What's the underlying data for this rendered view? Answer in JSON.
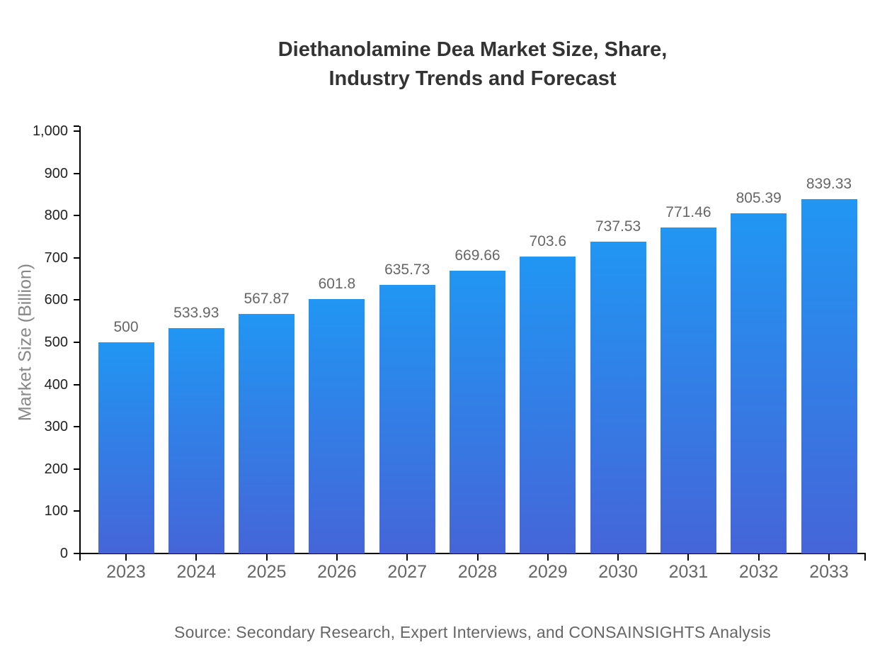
{
  "title": {
    "line1": "Diethanolamine Dea Market Size, Share,",
    "line2": "Industry Trends and Forecast",
    "color": "#333333"
  },
  "source": {
    "text": "Source: Secondary Research, Expert Interviews, and CONSAINSIGHTS Analysis",
    "color": "#666666"
  },
  "chart_data": {
    "type": "bar",
    "title": "Diethanolamine Dea Market Size, Share, Industry Trends and Forecast",
    "categories": [
      "2023",
      "2024",
      "2025",
      "2026",
      "2027",
      "2028",
      "2029",
      "2030",
      "2031",
      "2032",
      "2033"
    ],
    "values": [
      500,
      533.93,
      567.87,
      601.8,
      635.73,
      669.66,
      703.6,
      737.53,
      771.46,
      805.39,
      839.33
    ],
    "value_labels": [
      "500",
      "533.93",
      "567.87",
      "601.8",
      "635.73",
      "669.66",
      "703.6",
      "737.53",
      "771.46",
      "805.39",
      "839.33"
    ],
    "xlabel": "",
    "ylabel": "Market Size (Billion)",
    "ylim": [
      0,
      1000
    ],
    "ytick_interval": 100,
    "ytick_labels": [
      "0",
      "100",
      "200",
      "300",
      "400",
      "500",
      "600",
      "700",
      "800",
      "900",
      "1,000"
    ],
    "grid": false,
    "legend": false,
    "colors": {
      "bar_gradient_top": "#2196f3",
      "bar_gradient_bottom": "#4565d8",
      "axis": "#000000",
      "ytick_label": "#222222",
      "xtick_label": "#666666",
      "value_label": "#666666",
      "ylabel": "#888888",
      "title": "#333333",
      "source": "#666666",
      "background": "#ffffff"
    }
  }
}
